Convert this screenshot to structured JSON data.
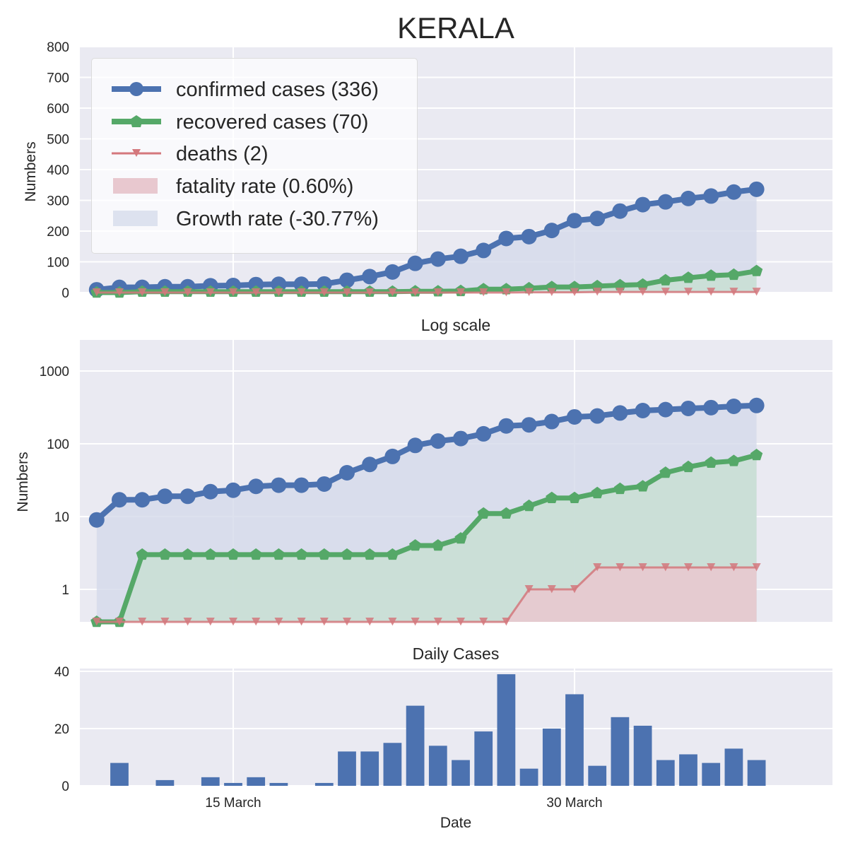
{
  "figure": {
    "title": "KERALA",
    "legend": [
      {
        "label": "confirmed cases (336)",
        "marker": "circle",
        "color": "#4c72b0"
      },
      {
        "label": "recovered cases (70)",
        "marker": "pentagon",
        "color": "#55a868"
      },
      {
        "label": "deaths (2)",
        "marker": "triangle-down",
        "color": "#d4787d"
      },
      {
        "label": "fatality rate (0.60%)",
        "marker": "patch",
        "color": "#e8c8cf"
      },
      {
        "label": "Growth rate (-30.77%)",
        "marker": "patch",
        "color": "#dde2ef"
      }
    ]
  },
  "chart_data": [
    {
      "type": "line",
      "title": "",
      "xlabel": "",
      "ylabel": "Numbers",
      "ylim": [
        0,
        800
      ],
      "yticks": [
        0,
        100,
        200,
        300,
        400,
        500,
        600,
        700,
        800
      ],
      "x": [
        "2020-03-09",
        "2020-03-10",
        "2020-03-11",
        "2020-03-12",
        "2020-03-13",
        "2020-03-14",
        "2020-03-15",
        "2020-03-16",
        "2020-03-17",
        "2020-03-18",
        "2020-03-19",
        "2020-03-20",
        "2020-03-21",
        "2020-03-22",
        "2020-03-23",
        "2020-03-24",
        "2020-03-25",
        "2020-03-26",
        "2020-03-27",
        "2020-03-28",
        "2020-03-29",
        "2020-03-30",
        "2020-03-31",
        "2020-04-01",
        "2020-04-02",
        "2020-04-03",
        "2020-04-04",
        "2020-04-05",
        "2020-04-06",
        "2020-04-07"
      ],
      "series": [
        {
          "name": "confirmed cases (336)",
          "color": "#4c72b0",
          "values": [
            9,
            17,
            17,
            19,
            19,
            22,
            23,
            26,
            27,
            27,
            28,
            40,
            52,
            67,
            95,
            109,
            118,
            137,
            176,
            182,
            202,
            234,
            241,
            265,
            286,
            295,
            306,
            314,
            327,
            336
          ]
        },
        {
          "name": "recovered cases (70)",
          "color": "#55a868",
          "values": [
            0,
            0,
            3,
            3,
            3,
            3,
            3,
            3,
            3,
            3,
            3,
            3,
            3,
            3,
            4,
            4,
            5,
            11,
            11,
            14,
            18,
            18,
            21,
            24,
            26,
            40,
            48,
            55,
            58,
            70
          ]
        },
        {
          "name": "deaths (2)",
          "color": "#d4787d",
          "values": [
            0,
            0,
            0,
            0,
            0,
            0,
            0,
            0,
            0,
            0,
            0,
            0,
            0,
            0,
            0,
            0,
            0,
            0,
            0,
            1,
            1,
            1,
            2,
            2,
            2,
            2,
            2,
            2,
            2,
            2
          ]
        }
      ]
    },
    {
      "type": "line",
      "title": "Log scale",
      "xlabel": "",
      "ylabel": "Numbers",
      "yscale": "log",
      "ylim": [
        0.59,
        10000
      ],
      "yticks": [
        1,
        10,
        100,
        1000
      ],
      "ytick_labels": [
        "1",
        "10",
        "100",
        "1000"
      ],
      "series_ref": "same as first panel"
    },
    {
      "type": "bar",
      "title": "Daily Cases",
      "xlabel": "Date",
      "ylabel": "",
      "ylim": [
        0,
        41
      ],
      "yticks": [
        0,
        20,
        40
      ],
      "xticks": [
        {
          "date": "2020-03-15",
          "label": "15 March"
        },
        {
          "date": "2020-03-30",
          "label": "30 March"
        }
      ],
      "color": "#4c72b0",
      "x": [
        "2020-03-10",
        "2020-03-12",
        "2020-03-14",
        "2020-03-15",
        "2020-03-16",
        "2020-03-17",
        "2020-03-19",
        "2020-03-20",
        "2020-03-21",
        "2020-03-22",
        "2020-03-23",
        "2020-03-24",
        "2020-03-25",
        "2020-03-26",
        "2020-03-27",
        "2020-03-28",
        "2020-03-29",
        "2020-03-30",
        "2020-03-31",
        "2020-04-01",
        "2020-04-02",
        "2020-04-03",
        "2020-04-04",
        "2020-04-05",
        "2020-04-06",
        "2020-04-07"
      ],
      "values": [
        8,
        2,
        3,
        1,
        3,
        1,
        1,
        12,
        12,
        15,
        28,
        14,
        9,
        19,
        39,
        6,
        20,
        32,
        7,
        24,
        21,
        9,
        11,
        8,
        13,
        9
      ]
    }
  ]
}
